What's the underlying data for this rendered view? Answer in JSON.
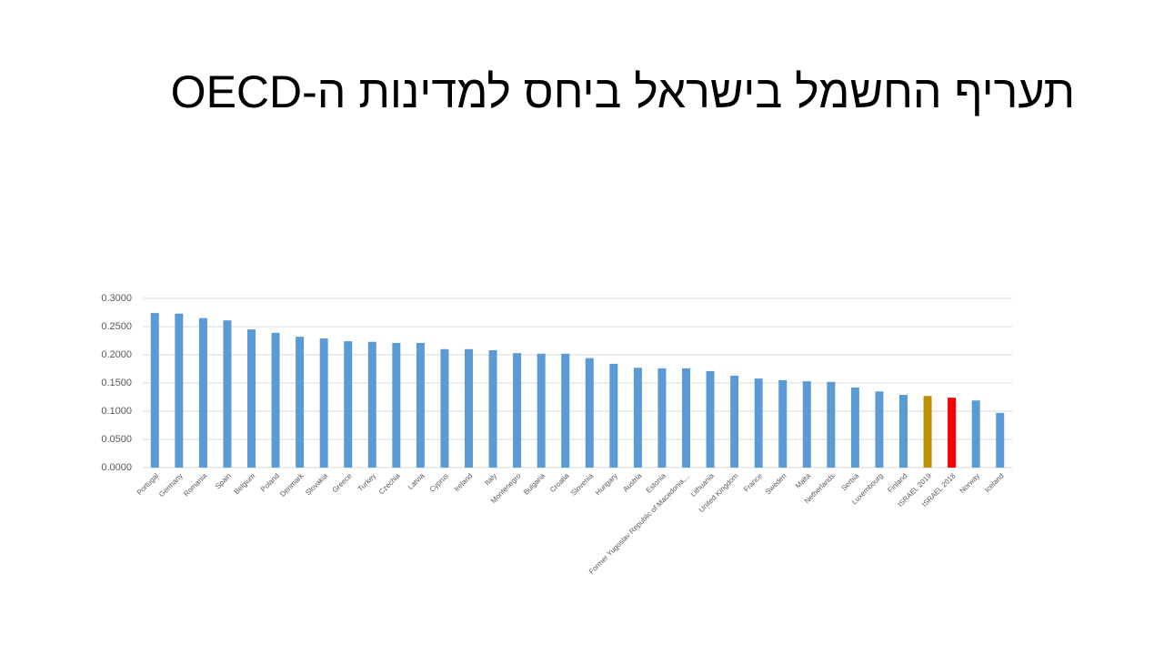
{
  "chart_data": {
    "type": "bar",
    "title": "תעריף החשמל בישראל ביחס למדינות ה-OECD",
    "categories": [
      "Portugal",
      "Germany",
      "Romania",
      "Spain",
      "Belgium",
      "Poland",
      "Denmark",
      "Slovakia",
      "Greece",
      "Turkey",
      "Czechia",
      "Latvia",
      "Cyprus",
      "Ireland",
      "Italy",
      "Montenegro",
      "Bulgaria",
      "Croatia",
      "Slovenia",
      "Hungary",
      "Austria",
      "Estonia",
      "Former Yugoslav Republic of Macedonia,...",
      "Lithuania",
      "United Kingdom",
      "France",
      "Sweden",
      "Malta",
      "Netherlands",
      "Serbia",
      "Luxembourg",
      "Finland",
      "ISRAEL 2019",
      "ISRAEL 2018",
      "Norway",
      "Iceland"
    ],
    "values": [
      0.274,
      0.273,
      0.265,
      0.261,
      0.245,
      0.239,
      0.232,
      0.229,
      0.224,
      0.223,
      0.221,
      0.221,
      0.21,
      0.21,
      0.208,
      0.203,
      0.202,
      0.202,
      0.194,
      0.184,
      0.177,
      0.176,
      0.176,
      0.171,
      0.163,
      0.158,
      0.155,
      0.153,
      0.152,
      0.142,
      0.135,
      0.129,
      0.127,
      0.124,
      0.119,
      0.097
    ],
    "colors": [
      "#5b9bd5",
      "#5b9bd5",
      "#5b9bd5",
      "#5b9bd5",
      "#5b9bd5",
      "#5b9bd5",
      "#5b9bd5",
      "#5b9bd5",
      "#5b9bd5",
      "#5b9bd5",
      "#5b9bd5",
      "#5b9bd5",
      "#5b9bd5",
      "#5b9bd5",
      "#5b9bd5",
      "#5b9bd5",
      "#5b9bd5",
      "#5b9bd5",
      "#5b9bd5",
      "#5b9bd5",
      "#5b9bd5",
      "#5b9bd5",
      "#5b9bd5",
      "#5b9bd5",
      "#5b9bd5",
      "#5b9bd5",
      "#5b9bd5",
      "#5b9bd5",
      "#5b9bd5",
      "#5b9bd5",
      "#5b9bd5",
      "#5b9bd5",
      "#bf9000",
      "#ff0000",
      "#5b9bd5",
      "#5b9bd5"
    ],
    "ylim": [
      0,
      0.3
    ],
    "yticks": [
      {
        "value": 0,
        "label": "0.0000"
      },
      {
        "value": 0.05,
        "label": "0.0500"
      },
      {
        "value": 0.1,
        "label": "0.1000"
      },
      {
        "value": 0.15,
        "label": "0.1500"
      },
      {
        "value": 0.2,
        "label": "0.2000"
      },
      {
        "value": 0.25,
        "label": "0.2500"
      },
      {
        "value": 0.3,
        "label": "0.3000"
      }
    ],
    "grid": true
  }
}
